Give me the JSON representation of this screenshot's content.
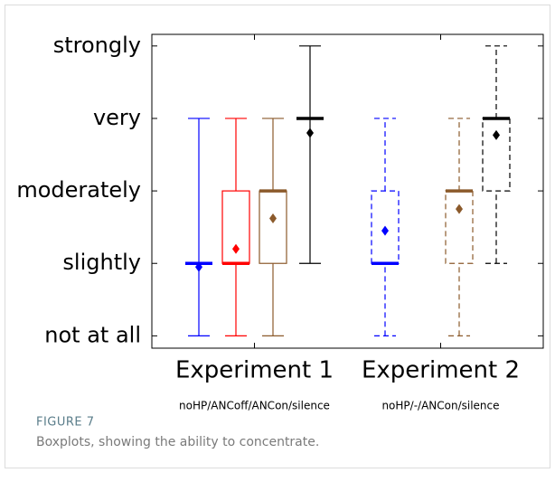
{
  "chart_data": {
    "type": "box",
    "ylim": [
      0.83,
      5.16
    ],
    "yticks": [
      {
        "value": 1,
        "label": "not at all"
      },
      {
        "value": 2,
        "label": "slightly"
      },
      {
        "value": 3,
        "label": "moderately"
      },
      {
        "value": 4,
        "label": "very"
      },
      {
        "value": 5,
        "label": "strongly"
      }
    ],
    "groups": [
      {
        "name": "Experiment 1",
        "sublabel": "noHP/ANCoff/ANCon/silence",
        "dashed": false,
        "boxes": [
          {
            "color": "#0000ff",
            "whisker_low": 1,
            "q1": 2,
            "median": 2,
            "q3": 2,
            "whisker_high": 4,
            "mean": 1.95
          },
          {
            "color": "#ff0000",
            "whisker_low": 1,
            "q1": 2,
            "median": 2,
            "q3": 3,
            "whisker_high": 4,
            "mean": 2.2
          },
          {
            "color": "#8b5a2b",
            "whisker_low": 1,
            "q1": 2,
            "median": 3,
            "q3": 3,
            "whisker_high": 4,
            "mean": 2.62
          },
          {
            "color": "#000000",
            "whisker_low": 2,
            "q1": 4,
            "median": 4,
            "q3": 4,
            "whisker_high": 5,
            "mean": 3.8
          }
        ]
      },
      {
        "name": "Experiment 2",
        "sublabel": "noHP/-/ANCon/silence",
        "dashed": true,
        "boxes": [
          {
            "color": "#0000ff",
            "whisker_low": 1,
            "q1": 2,
            "median": 2,
            "q3": 3,
            "whisker_high": 4,
            "mean": 2.45
          },
          null,
          {
            "color": "#8b5a2b",
            "whisker_low": 1,
            "q1": 2,
            "median": 3,
            "q3": 3,
            "whisker_high": 4,
            "mean": 2.75
          },
          {
            "color": "#000000",
            "whisker_low": 2,
            "q1": 3,
            "median": 4,
            "q3": 4,
            "whisker_high": 5,
            "mean": 3.77
          }
        ]
      }
    ],
    "caption_label": "FIGURE 7",
    "caption": "Boxplots, showing the ability to concentrate."
  }
}
